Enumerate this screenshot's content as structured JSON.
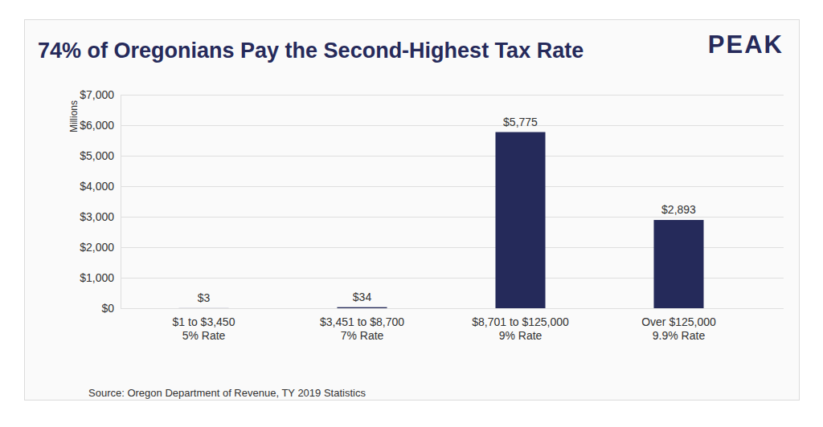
{
  "chart_data": {
    "type": "bar",
    "title": "74% of Oregonians Pay the Second-Highest Tax Rate",
    "brand": "PEAK",
    "y_label": "Millions",
    "source": "Source: Oregon Department of Revenue, TY 2019 Statistics",
    "categories": [
      "$1 to $3,450\n5% Rate",
      "$3,451 to $8,700\n7% Rate",
      "$8,701 to $125,000\n9% Rate",
      "Over $125,000\n9.9% Rate"
    ],
    "values": [
      3,
      34,
      5775,
      2893
    ],
    "value_labels": [
      "$3",
      "$34",
      "$5,775",
      "$2,893"
    ],
    "color": "#252a5a",
    "ylim": [
      0,
      7000
    ],
    "yticks": [
      {
        "value": 0,
        "label": "$0"
      },
      {
        "value": 1000,
        "label": "$1,000"
      },
      {
        "value": 2000,
        "label": "$2,000"
      },
      {
        "value": 3000,
        "label": "$3,000"
      },
      {
        "value": 4000,
        "label": "$4,000"
      },
      {
        "value": 5000,
        "label": "$5,000"
      },
      {
        "value": 6000,
        "label": "$6,000"
      },
      {
        "value": 7000,
        "label": "$7,000"
      }
    ],
    "grid": true,
    "data_labels": true
  }
}
